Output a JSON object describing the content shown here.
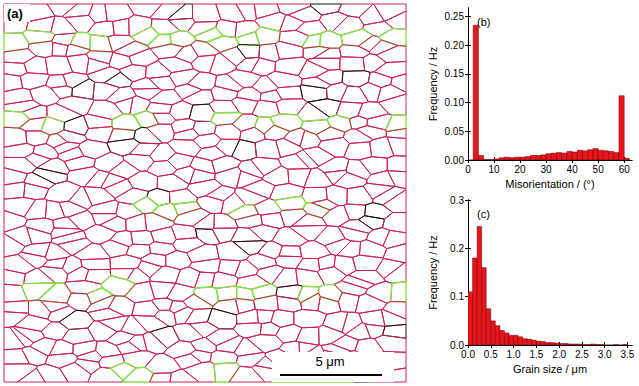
{
  "map": {
    "label": "(a)",
    "scale_bar": "5 μm"
  },
  "chart_data": [
    {
      "type": "histogram",
      "title": "(b)",
      "xlabel": "Misorientation / (°)",
      "ylabel": "Frequency / Hz",
      "bins": [
        0,
        2,
        4,
        6,
        8,
        10,
        12,
        14,
        16,
        18,
        20,
        22,
        24,
        26,
        28,
        30,
        32,
        34,
        36,
        38,
        40,
        42,
        44,
        46,
        48,
        50,
        52,
        54,
        56,
        58,
        60,
        62
      ],
      "values": [
        0,
        0.235,
        0.008,
        0.001,
        0.001,
        0.002,
        0.004,
        0.005,
        0.004,
        0.005,
        0.005,
        0.006,
        0.008,
        0.008,
        0.009,
        0.011,
        0.012,
        0.013,
        0.012,
        0.015,
        0.014,
        0.017,
        0.016,
        0.018,
        0.02,
        0.017,
        0.016,
        0.015,
        0.013,
        0.112,
        0.003
      ],
      "color": "#e8161b",
      "xlim": [
        0,
        63
      ],
      "xticks": [
        0,
        10,
        20,
        30,
        40,
        50,
        60
      ],
      "ylim": [
        0,
        0.265
      ],
      "yticks": [
        {
          "value": 0,
          "label": "0.00"
        },
        0.05,
        {
          "value": 0.1,
          "label": "0.10"
        },
        0.15,
        {
          "value": 0.2,
          "label": "0.20"
        },
        0.25
      ],
      "grid": false
    },
    {
      "type": "histogram",
      "title": "(c)",
      "xlabel": "Grain size / μm",
      "ylabel": "Frequency / Hz",
      "bins": [
        0,
        0.1,
        0.2,
        0.3,
        0.4,
        0.5,
        0.6,
        0.7,
        0.8,
        0.9,
        1,
        1.1,
        1.2,
        1.3,
        1.4,
        1.5,
        1.6,
        1.7,
        1.8,
        1.9,
        2,
        2.1,
        2.2,
        2.3,
        2.4,
        2.5,
        2.6,
        2.7,
        2.8,
        2.9,
        3,
        3.1,
        3.2,
        3.3,
        3.4,
        3.5
      ],
      "values": [
        0.11,
        0.18,
        0.245,
        0.16,
        0.075,
        0.05,
        0.04,
        0.03,
        0.025,
        0.02,
        0.02,
        0.017,
        0.013,
        0.012,
        0.01,
        0.008,
        0.007,
        0.005,
        0.005,
        0.004,
        0.003,
        0.003,
        0.002,
        0.002,
        0.002,
        0.001,
        0.001,
        0.002,
        0.001,
        0.001,
        0,
        0,
        0.001,
        0,
        0.001
      ],
      "color": "#e8161b",
      "xlim": [
        0,
        3.6
      ],
      "xticks": [
        {
          "value": 0,
          "label": "0.0"
        },
        0.5,
        {
          "value": 1,
          "label": "1.0"
        },
        1.5,
        {
          "value": 2,
          "label": "2.0"
        },
        2.5,
        {
          "value": 3,
          "label": "3.0"
        },
        3.5
      ],
      "ylim": [
        0,
        0.3
      ],
      "yticks": [
        {
          "value": 0,
          "label": "0.0"
        },
        0.1,
        0.2,
        0.3
      ],
      "grid": false
    }
  ]
}
